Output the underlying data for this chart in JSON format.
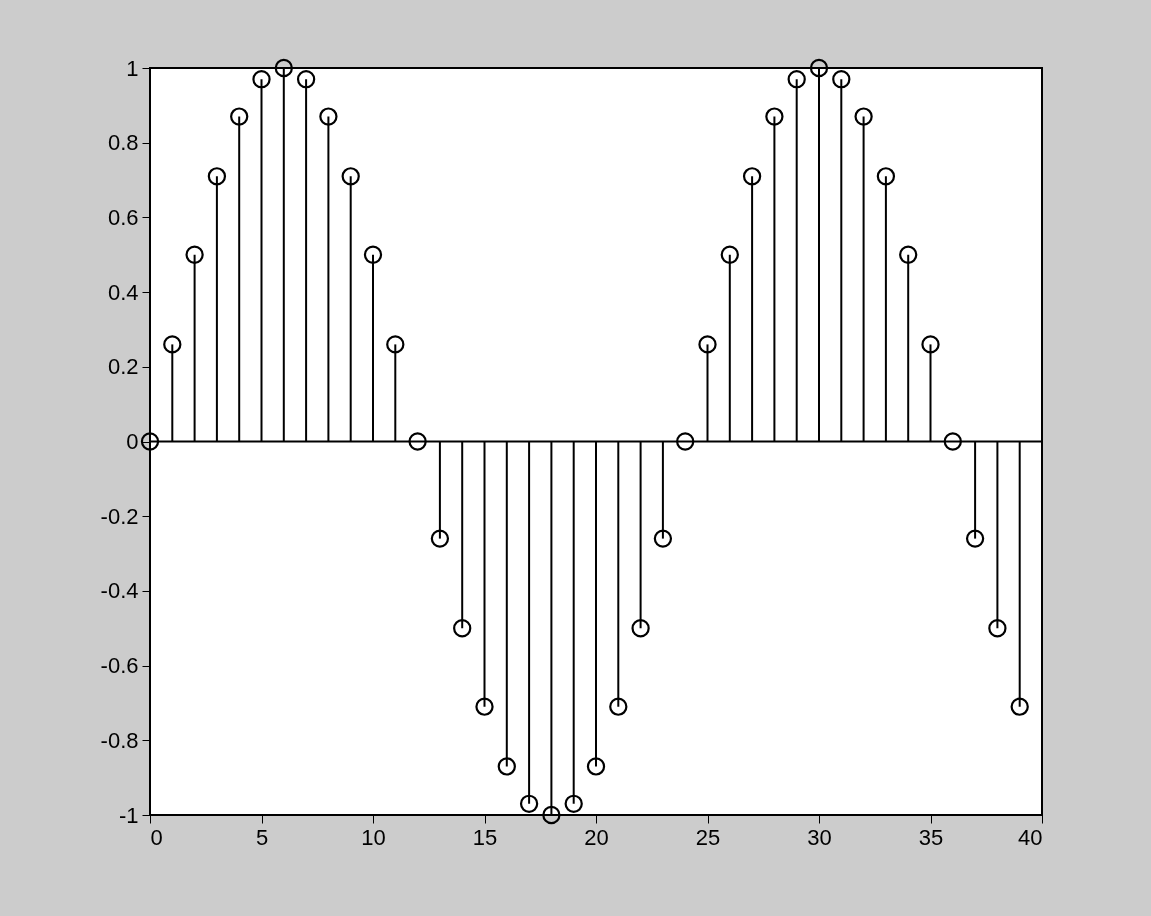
{
  "chart_data": {
    "type": "lollipop",
    "x": [
      0,
      1,
      2,
      3,
      4,
      5,
      6,
      7,
      8,
      9,
      10,
      11,
      12,
      13,
      14,
      15,
      16,
      17,
      18,
      19,
      20,
      21,
      22,
      23,
      24,
      25,
      26,
      27,
      28,
      29,
      30,
      31,
      32,
      33,
      34,
      35,
      36,
      37,
      38,
      39
    ],
    "series": [
      {
        "color": "#000000",
        "values": [
          0,
          0.26,
          0.5,
          0.71,
          0.87,
          0.97,
          1,
          0.97,
          0.87,
          0.71,
          0.5,
          0.26,
          0,
          -0.26,
          -0.5,
          -0.71,
          -0.87,
          -0.97,
          -1,
          -0.97,
          -0.87,
          -0.71,
          -0.5,
          -0.26,
          0,
          0.26,
          0.5,
          0.71,
          0.87,
          0.97,
          1,
          0.97,
          0.87,
          0.71,
          0.5,
          0.26,
          0,
          -0.26,
          -0.5,
          -0.71
        ]
      }
    ],
    "xlim": [
      0,
      40
    ],
    "xticks": [
      0,
      5,
      10,
      15,
      20,
      25,
      30,
      35,
      40
    ],
    "ylim": [
      -1,
      1
    ],
    "yticks": [
      -1,
      -0.8,
      -0.6,
      -0.4,
      -0.2,
      0,
      0.2,
      0.4,
      0.6,
      0.8,
      1
    ],
    "ref_lines": [
      {
        "axis": "y",
        "value": 0,
        "color": "#000000"
      }
    ],
    "marker": "circle",
    "grid": false
  }
}
